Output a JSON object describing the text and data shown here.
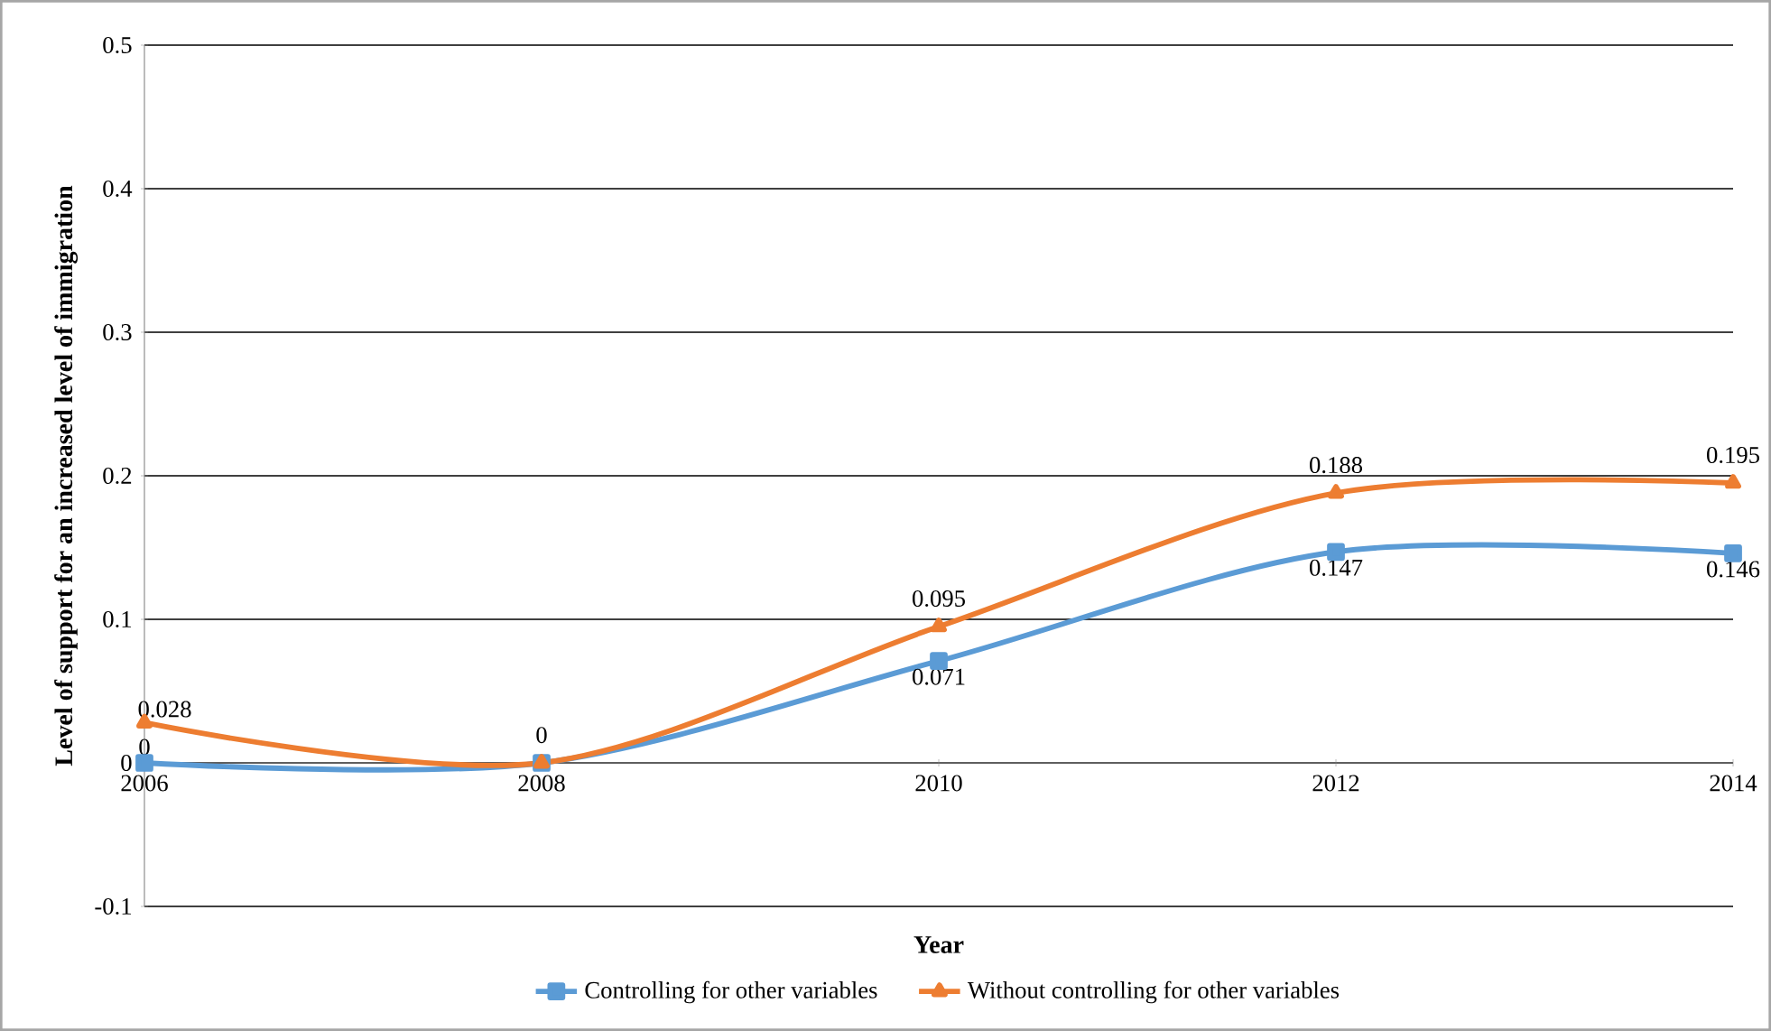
{
  "chart_data": {
    "type": "line",
    "xlabel": "Year",
    "ylabel": "Level of support for an increased level of immigration",
    "x": [
      2006,
      2008,
      2010,
      2012,
      2014
    ],
    "xlim": [
      2006,
      2014
    ],
    "xticks": [
      2006,
      2008,
      2010,
      2012,
      2014
    ],
    "ylim": [
      -0.1,
      0.5
    ],
    "yticks": [
      -0.1,
      0,
      0.1,
      0.2,
      0.3,
      0.4,
      0.5
    ],
    "grid": "y",
    "legend": "bottom",
    "line_style": "solid",
    "series": [
      {
        "name": "Controlling for other variables",
        "color": "#5b9bd5",
        "marker": "square",
        "values": [
          0,
          0,
          0.071,
          0.147,
          0.146
        ],
        "value_labels": [
          "0",
          null,
          "0.071",
          "0.147",
          "0.146"
        ]
      },
      {
        "name": "Without controlling for other variables",
        "color": "#ed7d31",
        "marker": "triangle",
        "values": [
          0.028,
          0,
          0.095,
          0.188,
          0.195
        ],
        "value_labels": [
          "0.028",
          "0",
          "0.095",
          "0.188",
          "0.195"
        ]
      }
    ]
  }
}
